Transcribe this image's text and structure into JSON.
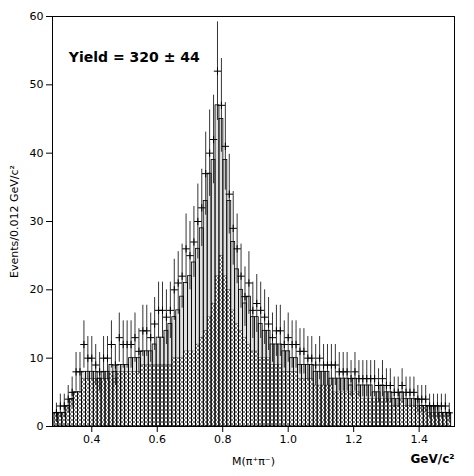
{
  "chart_data": {
    "type": "bar",
    "xlabel": "M(π⁺π⁻)",
    "ylabel": "Events/0.012 GeV/c²",
    "xlim": [
      0.28,
      1.508
    ],
    "ylim": [
      0,
      60
    ],
    "xticks": [
      0.4,
      0.6,
      0.8,
      {
        "value": 1.0,
        "label": "1.0"
      },
      1.2,
      1.4
    ],
    "yticks": [
      0,
      10,
      20,
      30,
      40,
      50,
      60
    ],
    "grid": false,
    "annotations": [
      {
        "text": "Yield = 320 ± 44",
        "x": 0.33,
        "y": 54
      },
      {
        "text": "GeV/c²"
      }
    ],
    "bins": [
      0.286,
      0.298,
      0.31,
      0.322,
      0.334,
      0.346,
      0.358,
      0.37,
      0.382,
      0.394,
      0.406,
      0.418,
      0.43,
      0.442,
      0.454,
      0.466,
      0.478,
      0.49,
      0.502,
      0.514,
      0.526,
      0.538,
      0.55,
      0.562,
      0.574,
      0.586,
      0.598,
      0.61,
      0.622,
      0.634,
      0.646,
      0.658,
      0.67,
      0.682,
      0.694,
      0.706,
      0.718,
      0.73,
      0.742,
      0.754,
      0.766,
      0.778,
      0.79,
      0.802,
      0.814,
      0.826,
      0.838,
      0.85,
      0.862,
      0.874,
      0.886,
      0.898,
      0.91,
      0.922,
      0.934,
      0.946,
      0.958,
      0.97,
      0.982,
      0.994,
      1.006,
      1.018,
      1.03,
      1.042,
      1.054,
      1.066,
      1.078,
      1.09,
      1.102,
      1.114,
      1.126,
      1.138,
      1.15,
      1.162,
      1.174,
      1.186,
      1.198,
      1.21,
      1.222,
      1.234,
      1.246,
      1.258,
      1.27,
      1.282,
      1.294,
      1.306,
      1.318,
      1.33,
      1.342,
      1.354,
      1.366,
      1.378,
      1.39,
      1.402,
      1.414,
      1.426,
      1.438,
      1.45,
      1.462,
      1.474,
      1.486,
      1.498
    ],
    "series": [
      {
        "type": "bar",
        "values": [
          2,
          2,
          2,
          3,
          4,
          5,
          5,
          7,
          7,
          7,
          7,
          7,
          7,
          7,
          8,
          7,
          8,
          8,
          8,
          8,
          8,
          8,
          9,
          9,
          9,
          9,
          9,
          9,
          9,
          9,
          10,
          10,
          10,
          11,
          11,
          11,
          12,
          13,
          14,
          16,
          18,
          22,
          25,
          22,
          20,
          17,
          15,
          14,
          13,
          12,
          11,
          11,
          10,
          10,
          10,
          9,
          9,
          9,
          8,
          8,
          8,
          8,
          7,
          7,
          7,
          7,
          6,
          6,
          6,
          6,
          6,
          5,
          5,
          5,
          5,
          5,
          5,
          5,
          4,
          4,
          4,
          4,
          4,
          4,
          4,
          4,
          3,
          3,
          4,
          3,
          3,
          3,
          3,
          3,
          3,
          2,
          2,
          2,
          2,
          2,
          2
        ]
      },
      {
        "type": "step",
        "values": [
          2,
          2,
          2,
          3,
          4,
          5,
          5,
          8,
          8,
          8,
          8,
          7,
          8,
          8,
          9,
          8,
          9,
          9,
          9,
          10,
          10,
          10,
          11,
          11,
          11,
          12,
          13,
          13,
          14,
          15,
          16,
          17,
          19,
          21,
          22,
          24,
          26,
          29,
          33,
          37,
          39,
          47,
          45,
          39,
          33,
          27,
          23,
          20,
          18,
          19,
          16,
          16,
          15,
          14,
          14,
          12,
          12,
          12,
          11,
          11,
          10,
          10,
          9,
          9,
          9,
          9,
          8,
          8,
          8,
          8,
          7,
          7,
          7,
          7,
          7,
          6,
          7,
          6,
          6,
          6,
          6,
          5,
          5,
          6,
          5,
          5,
          4,
          4,
          5,
          4,
          4,
          4,
          4,
          3,
          3,
          3,
          3,
          3,
          2,
          2,
          2
        ]
      },
      {
        "type": "scatter",
        "marker": "plus",
        "x": [
          0.292,
          0.304,
          0.316,
          0.328,
          0.34,
          0.352,
          0.364,
          0.376,
          0.388,
          0.4,
          0.412,
          0.424,
          0.436,
          0.448,
          0.46,
          0.472,
          0.484,
          0.496,
          0.508,
          0.52,
          0.532,
          0.544,
          0.556,
          0.568,
          0.58,
          0.592,
          0.604,
          0.616,
          0.628,
          0.64,
          0.652,
          0.664,
          0.676,
          0.688,
          0.7,
          0.712,
          0.724,
          0.736,
          0.748,
          0.76,
          0.772,
          0.784,
          0.796,
          0.808,
          0.82,
          0.832,
          0.844,
          0.856,
          0.868,
          0.88,
          0.892,
          0.904,
          0.916,
          0.928,
          0.94,
          0.952,
          0.964,
          0.976,
          0.988,
          1.0,
          1.012,
          1.024,
          1.036,
          1.048,
          1.06,
          1.072,
          1.084,
          1.096,
          1.108,
          1.12,
          1.132,
          1.144,
          1.156,
          1.168,
          1.18,
          1.192,
          1.204,
          1.216,
          1.228,
          1.24,
          1.252,
          1.264,
          1.276,
          1.288,
          1.3,
          1.312,
          1.324,
          1.336,
          1.348,
          1.36,
          1.372,
          1.384,
          1.396,
          1.408,
          1.42,
          1.432,
          1.444,
          1.456,
          1.468,
          1.48,
          1.492
        ],
        "values": [
          2,
          3,
          3,
          4,
          5,
          8,
          8,
          12,
          10,
          10,
          9,
          8,
          10,
          10,
          12,
          9,
          13,
          12,
          12,
          12,
          13,
          11,
          14,
          14,
          13,
          15,
          17,
          17,
          16,
          17,
          20,
          21,
          22,
          26,
          25,
          27,
          30,
          32,
          37,
          40,
          42,
          52,
          47,
          41,
          34,
          29,
          26,
          22,
          19,
          21,
          17,
          18,
          17,
          16,
          15,
          13,
          14,
          14,
          12,
          13,
          12,
          12,
          11,
          11,
          10,
          10,
          9,
          10,
          9,
          9,
          9,
          9,
          8,
          8,
          8,
          7,
          8,
          7,
          7,
          7,
          7,
          7,
          6,
          7,
          6,
          6,
          5,
          5,
          6,
          5,
          5,
          5,
          4,
          4,
          4,
          3,
          3,
          3,
          3,
          3,
          2
        ],
        "errors": [
          1.4142135623730951,
          1.7320508075688772,
          1.7320508075688772,
          2,
          2.23606797749979,
          2.8284271247461903,
          2.8284271247461903,
          3.4641016151377544,
          3.1622776601683795,
          3.1622776601683795,
          3,
          2.8284271247461903,
          3.1622776601683795,
          3.1622776601683795,
          3.4641016151377544,
          3,
          3.605551275463989,
          3.4641016151377544,
          3.4641016151377544,
          3.4641016151377544,
          3.605551275463989,
          3.3166247903554,
          3.7416573867739413,
          3.7416573867739413,
          3.605551275463989,
          3.872983346207417,
          4.123105625617661,
          4.123105625617661,
          4,
          4.123105625617661,
          4.47213595499958,
          4.58257569495584,
          4.69041575982343,
          5.0990195135927845,
          5,
          5.196152422706632,
          5.477225575051661,
          5.656854249492381,
          6.082762530298219,
          6.324555320336759,
          6.48074069840786,
          7.211102550927978,
          6.855654600401044,
          6.4031242374328485,
          5.830951894845301,
          5.385164807134504,
          5.0990195135927845,
          4.69041575982343,
          4.358898943540674,
          4.58257569495584,
          4.123105625617661,
          4.242640687119285,
          4.123105625617661,
          4,
          3.872983346207417,
          3.605551275463989,
          3.7416573867739413,
          3.7416573867739413,
          3.4641016151377544,
          3.605551275463989,
          3.4641016151377544,
          3.4641016151377544,
          3.3166247903554,
          3.3166247903554,
          3.1622776601683795,
          3.1622776601683795,
          3,
          3.1622776601683795,
          3,
          3,
          3,
          3,
          2.8284271247461903,
          2.8284271247461903,
          2.8284271247461903,
          2.6457513110645907,
          2.8284271247461903,
          2.6457513110645907,
          2.6457513110645907,
          2.6457513110645907,
          2.6457513110645907,
          2.6457513110645907,
          2.449489742783178,
          2.6457513110645907,
          2.449489742783178,
          2.449489742783178,
          2.23606797749979,
          2.23606797749979,
          2.449489742783178,
          2.23606797749979,
          2.23606797749979,
          2.23606797749979,
          2,
          2,
          2,
          1.7320508075688772,
          1.7320508075688772,
          1.7320508075688772,
          1.7320508075688772,
          1.7320508075688772,
          1.4142135623730951
        ]
      }
    ]
  }
}
